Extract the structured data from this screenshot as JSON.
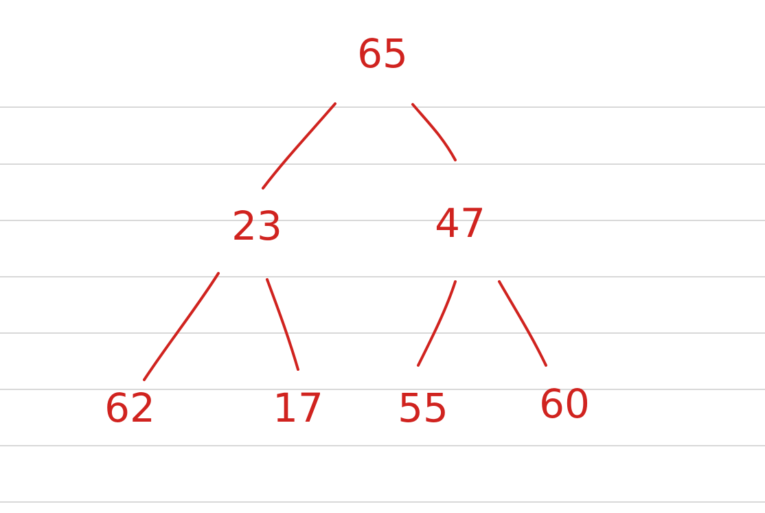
{
  "diagram": {
    "type": "binary-tree",
    "ink_color": "#d0231f",
    "paper_line_color": "#d8d8d8",
    "background_color": "#ffffff",
    "nodes": [
      {
        "id": "n65",
        "label": "65",
        "level": 0
      },
      {
        "id": "n23",
        "label": "23",
        "level": 1
      },
      {
        "id": "n47",
        "label": "47",
        "level": 1
      },
      {
        "id": "n62",
        "label": "62",
        "level": 2
      },
      {
        "id": "n17",
        "label": "17",
        "level": 2
      },
      {
        "id": "n55",
        "label": "55",
        "level": 2
      },
      {
        "id": "n60",
        "label": "60",
        "level": 2
      }
    ],
    "edges": [
      {
        "from": "n65",
        "to": "n23"
      },
      {
        "from": "n65",
        "to": "n47"
      },
      {
        "from": "n23",
        "to": "n62"
      },
      {
        "from": "n23",
        "to": "n17"
      },
      {
        "from": "n47",
        "to": "n55"
      },
      {
        "from": "n47",
        "to": "n60"
      }
    ]
  }
}
